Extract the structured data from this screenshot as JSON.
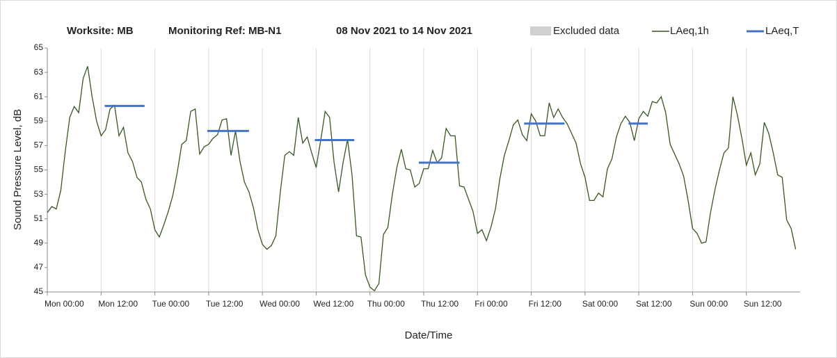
{
  "chart_data": {
    "type": "line",
    "title": [
      "Worksite: MB",
      "Monitoring Ref: MB-N1",
      "08 Nov 2021 to 14 Nov 2021"
    ],
    "xlabel": "Date/Time",
    "ylabel": "Sound Pressure Level, dB",
    "xlim": [
      0,
      168
    ],
    "ylim": [
      45,
      65
    ],
    "yticks": [
      45,
      47,
      49,
      51,
      53,
      55,
      57,
      59,
      61,
      63,
      65
    ],
    "xticks": [
      {
        "value": 0,
        "label": "Mon 00:00"
      },
      {
        "value": 12,
        "label": "Mon 12:00"
      },
      {
        "value": 24,
        "label": "Tue 00:00"
      },
      {
        "value": 36,
        "label": "Tue 12:00"
      },
      {
        "value": 48,
        "label": "Wed 00:00"
      },
      {
        "value": 60,
        "label": "Wed 12:00"
      },
      {
        "value": 72,
        "label": "Thu 00:00"
      },
      {
        "value": 84,
        "label": "Thu 12:00"
      },
      {
        "value": 96,
        "label": "Fri 00:00"
      },
      {
        "value": 108,
        "label": "Fri 12:00"
      },
      {
        "value": 120,
        "label": "Sat 00:00"
      },
      {
        "value": 132,
        "label": "Sat 12:00"
      },
      {
        "value": 144,
        "label": "Sun 00:00"
      },
      {
        "value": 156,
        "label": "Sun 12:00"
      }
    ],
    "grid": true,
    "excluded": {
      "name": "Excluded data",
      "color": "#d0d0d0"
    },
    "series": [
      {
        "name": "LAeq,1h",
        "color": "#375623",
        "values": [
          51.5,
          52,
          51.8,
          53.3,
          56.5,
          59.3,
          60.2,
          59.7,
          62.5,
          63.5,
          61,
          59,
          57.8,
          58.3,
          60,
          60.3,
          57.8,
          58.5,
          56.4,
          55.7,
          54.4,
          54,
          52.6,
          51.8,
          50.1,
          49.5,
          50.5,
          51.6,
          52.9,
          54.8,
          57.1,
          57.4,
          59.8,
          60,
          56.3,
          56.9,
          57.1,
          57.6,
          57.9,
          59.1,
          59.2,
          56.2,
          58.2,
          55.7,
          54,
          53.2,
          51.9,
          50.1,
          48.9,
          48.5,
          48.8,
          49.6,
          53.2,
          56.2,
          56.5,
          56.2,
          59.3,
          57.2,
          57.7,
          56.4,
          55.2,
          57.4,
          59.8,
          59.3,
          55.6,
          53.2,
          55.6,
          57.5,
          54.6,
          49.6,
          49.5,
          46.4,
          45.4,
          45.1,
          45.7,
          49.7,
          50.3,
          53,
          55.2,
          56.7,
          55.1,
          55,
          53.6,
          53.9,
          55.1,
          55.1,
          56.6,
          55.6,
          56,
          58.4,
          57.8,
          57.8,
          53.7,
          53.6,
          52.6,
          51.6,
          49.8,
          50.1,
          49.2,
          50.3,
          51.8,
          54.3,
          56.2,
          57.4,
          58.7,
          59.1,
          57.9,
          57.4,
          59.6,
          59,
          57.8,
          57.8,
          60.5,
          59.3,
          60,
          59.3,
          58.8,
          58,
          57.2,
          55.5,
          54.4,
          52.5,
          52.5,
          53.1,
          52.8,
          55.1,
          55.9,
          57.7,
          58.8,
          59.4,
          58.9,
          57.4,
          59.2,
          59.8,
          59.4,
          60.6,
          60.5,
          61,
          59.7,
          57.1,
          56.3,
          55.5,
          54.5,
          52.5,
          50.2,
          49.8,
          49,
          49.1,
          51.5,
          53.4,
          55,
          56.4,
          56.8,
          61,
          59.5,
          57.6,
          55.4,
          56.4,
          54.6,
          55.5,
          58.9,
          58,
          56.4,
          54.6,
          54.4,
          50.9,
          50.2,
          48.5
        ]
      },
      {
        "name": "LAeq,T",
        "color": "#4472c4",
        "x_start": [
          12.8,
          35.7,
          59.7,
          82.9,
          106.4,
          129.7
        ],
        "x_end": [
          21.7,
          45,
          68.5,
          92,
          115.4,
          134
        ],
        "values": [
          60.25,
          58.2,
          57.45,
          55.6,
          58.8,
          58.8
        ]
      }
    ]
  }
}
